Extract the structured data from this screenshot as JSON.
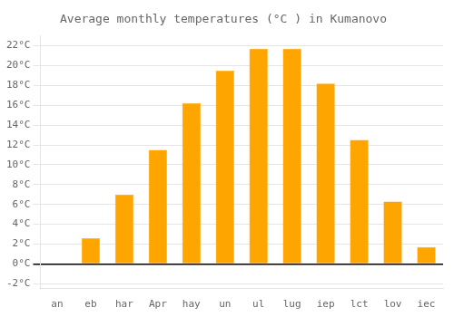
{
  "chart_data": {
    "type": "bar",
    "title": "Average monthly temperatures (°C ) in Kumanovo",
    "categories": [
      "an",
      "eb",
      "har",
      "Apr",
      "hay",
      "un",
      "ul",
      "lug",
      "iep",
      "lct",
      "lov",
      "iec"
    ],
    "values": [
      0.0,
      2.6,
      7.0,
      11.5,
      16.2,
      19.5,
      21.7,
      21.7,
      18.2,
      12.5,
      6.3,
      1.7
    ],
    "color": "#FFA500",
    "ylim": [
      -2.5,
      23
    ],
    "yticks": [
      {
        "value": -2,
        "label": "-2°C"
      },
      {
        "value": 0,
        "label": "0°C"
      },
      {
        "value": 2,
        "label": "2°C"
      },
      {
        "value": 4,
        "label": "4°C"
      },
      {
        "value": 6,
        "label": "6°C"
      },
      {
        "value": 8,
        "label": "8°C"
      },
      {
        "value": 10,
        "label": "10°C"
      },
      {
        "value": 12,
        "label": "12°C"
      },
      {
        "value": 14,
        "label": "14°C"
      },
      {
        "value": 16,
        "label": "16°C"
      },
      {
        "value": 18,
        "label": "18°C"
      },
      {
        "value": 20,
        "label": "20°C"
      },
      {
        "value": 22,
        "label": "22°C"
      }
    ],
    "grid": true
  }
}
